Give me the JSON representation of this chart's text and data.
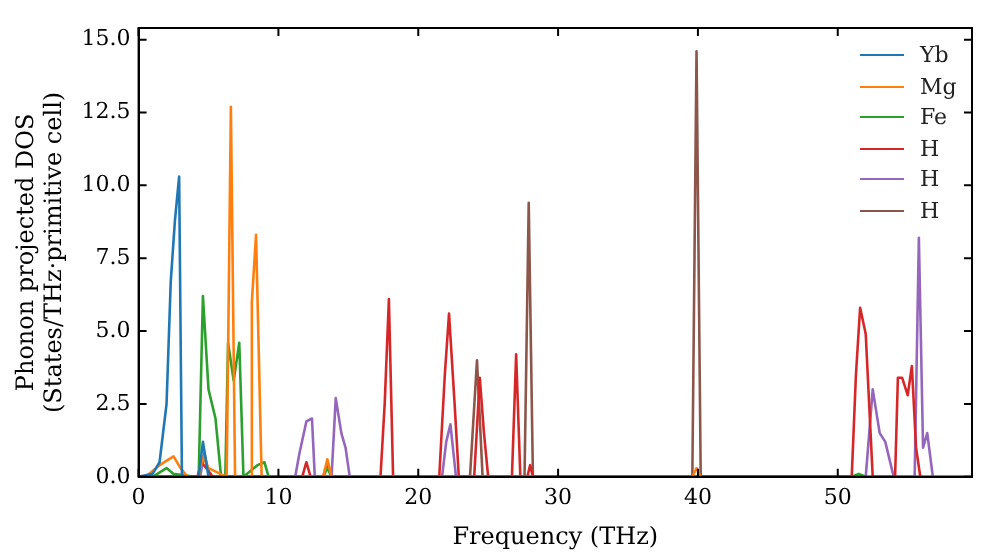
{
  "chart_data": {
    "type": "line",
    "xlabel": "Frequency (THz)",
    "ylabel": "Phonon projected DOS\n(States/THz·primitive cell)",
    "xlim": [
      0,
      59.6
    ],
    "ylim": [
      0,
      15.4
    ],
    "xticks": [
      0,
      10,
      20,
      30,
      40,
      50
    ],
    "yticks": [
      {
        "value": 0,
        "label": "0.0"
      },
      {
        "value": 2.5,
        "label": "2.5"
      },
      {
        "value": 5,
        "label": "5.0"
      },
      {
        "value": 7.5,
        "label": "7.5"
      },
      {
        "value": 10,
        "label": "10.0"
      },
      {
        "value": 12.5,
        "label": "12.5"
      },
      {
        "value": 15,
        "label": "15.0"
      }
    ],
    "grid": false,
    "legend": "top right",
    "marker": "none",
    "line_style": "solid",
    "series": [
      {
        "name": "Yb",
        "color": "#1f77b4",
        "x": [
          0,
          1,
          1.5,
          2,
          2.3,
          2.6,
          2.9,
          3.1,
          4.3,
          4.6,
          5.0
        ],
        "values": [
          0,
          0.1,
          0.5,
          2.5,
          6.7,
          8.8,
          10.3,
          0,
          0,
          1.2,
          0
        ]
      },
      {
        "name": "Mg",
        "color": "#ff7f0e",
        "x": [
          0,
          0.5,
          1.5,
          2.5,
          3,
          3.5,
          4.3,
          4.6,
          5,
          6.3,
          6.6,
          6.9,
          8,
          8.1,
          8.4,
          8.8,
          13.2,
          13.5,
          13.8,
          39.6,
          39.9,
          40.2
        ],
        "values": [
          0,
          0,
          0.4,
          0.7,
          0.3,
          0,
          0,
          0.7,
          0.3,
          0,
          12.7,
          0,
          0,
          6.0,
          8.3,
          0,
          0,
          0.6,
          0,
          0,
          0.3,
          0
        ]
      },
      {
        "name": "Fe",
        "color": "#2ca02c",
        "x": [
          0,
          1,
          2,
          2.5,
          4,
          4.3,
          4.6,
          5.0,
          5.5,
          5.9,
          6.2,
          6.4,
          6.8,
          7.2,
          7.5,
          8.5,
          9,
          9.3,
          13.2,
          13.5,
          13.8,
          51,
          51.5,
          52
        ],
        "values": [
          0,
          0,
          0.3,
          0.1,
          0,
          0,
          6.2,
          3.0,
          2.0,
          0,
          0,
          4.6,
          3.3,
          4.6,
          0,
          0.4,
          0.5,
          0,
          0,
          0.3,
          0,
          0,
          0.1,
          0
        ]
      },
      {
        "name": "H",
        "color": "#d62728",
        "x": [
          0,
          4.2,
          4.5,
          5,
          5.3,
          11.7,
          12,
          12.3,
          13.2,
          13.5,
          13.8,
          17.3,
          17.6,
          17.9,
          18.2,
          21.5,
          21.9,
          22.2,
          22.6,
          22.9,
          24.0,
          24.4,
          24.7,
          25.0,
          26.7,
          27,
          27.3,
          27.8,
          28,
          28.2,
          51,
          51.3,
          51.6,
          52,
          52.5,
          54.1,
          54.3,
          54.6,
          55,
          55.3,
          55.6,
          55.9
        ],
        "values": [
          0,
          0,
          0.5,
          0.2,
          0,
          0,
          0.5,
          0,
          0,
          0.5,
          0,
          0,
          2.5,
          6.1,
          0,
          0,
          3.5,
          5.6,
          2.5,
          0,
          0,
          3.4,
          1.5,
          0,
          0,
          4.2,
          0,
          0,
          0.4,
          0,
          0,
          3.5,
          5.8,
          4.9,
          0,
          0,
          3.4,
          3.4,
          2.8,
          3.8,
          1.0,
          0
        ]
      },
      {
        "name": "H",
        "color": "#9467bd",
        "x": [
          0,
          4.4,
          4.7,
          5.1,
          11.2,
          11.5,
          12,
          12.4,
          12.6,
          13.8,
          14.1,
          14.5,
          14.8,
          15.1,
          21.7,
          22,
          22.3,
          22.7,
          52,
          52.5,
          53,
          53.4,
          54,
          55.5,
          55.8,
          56.1,
          56.4,
          56.8
        ],
        "values": [
          0,
          0,
          0.8,
          0,
          0,
          0.8,
          1.9,
          2.0,
          0,
          0,
          2.7,
          1.5,
          1.0,
          0,
          0,
          1.2,
          1.8,
          0,
          0,
          3.0,
          1.5,
          1.2,
          0,
          0,
          8.2,
          1.0,
          1.5,
          0
        ]
      },
      {
        "name": "H",
        "color": "#8c564b",
        "x": [
          0,
          23.7,
          24.2,
          24.6,
          27.6,
          27.9,
          28.2,
          39.6,
          39.9,
          40.2,
          59.6
        ],
        "values": [
          0,
          0,
          4.0,
          0,
          0,
          9.4,
          0,
          0,
          14.6,
          0,
          0
        ]
      }
    ]
  }
}
